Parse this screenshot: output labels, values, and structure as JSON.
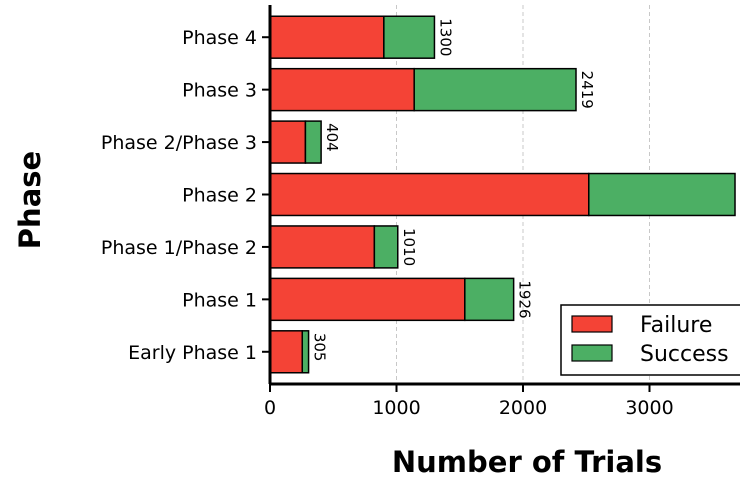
{
  "chart_data": {
    "type": "bar",
    "orientation": "horizontal",
    "stacked": true,
    "categories": [
      "Phase 4",
      "Phase 3",
      "Phase 2/Phase 3",
      "Phase 2",
      "Phase 1/Phase 2",
      "Phase 1",
      "Early Phase 1"
    ],
    "series": [
      {
        "name": "Failure",
        "color": "#f44336",
        "values": [
          900,
          1140,
          280,
          2520,
          825,
          1540,
          255
        ]
      },
      {
        "name": "Success",
        "color": "#4caf64",
        "values": [
          400,
          1279,
          124,
          1156,
          185,
          386,
          50
        ]
      }
    ],
    "totals": [
      "1300",
      "2419",
      "404",
      "3676",
      "1010",
      "1926",
      "305"
    ],
    "xlabel": "Number of Trials",
    "ylabel": "Phase",
    "xlim": [
      0,
      3700
    ],
    "xticks": [
      0,
      1000,
      2000,
      3000
    ],
    "grid": "x-dashed",
    "legend": "lower-right"
  }
}
